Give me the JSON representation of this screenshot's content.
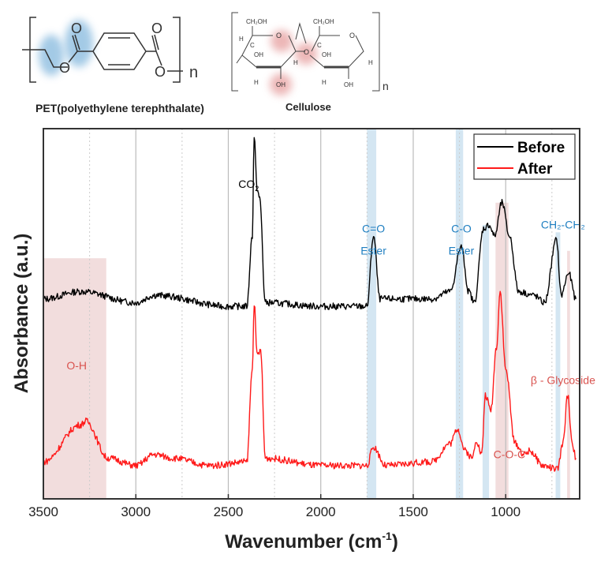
{
  "structures": {
    "pet": {
      "caption": "PET(polyethylene terephthalate)",
      "atom_o": "O",
      "repeat": "n"
    },
    "cellulose": {
      "caption": "Cellulose",
      "ch2oh": "CH₂OH",
      "oh": "OH",
      "h": "H",
      "c": "C",
      "o": "O",
      "repeat": "n"
    }
  },
  "colors": {
    "before": "#000000",
    "after": "#ff1a1a",
    "ester_band": "#cfe3f1",
    "cellulose_band": "#f1d9d9",
    "ester_label": "#1f7fc1",
    "cellulose_label": "#d9534f"
  },
  "chart_data": {
    "type": "line",
    "title": "",
    "xlabel": "Wavenumber (cm",
    "xlabel_sup": "-1",
    "xlabel_end": ")",
    "ylabel": "Absorbance (a.u.)",
    "xlim": [
      3500,
      600
    ],
    "ylim": [
      0,
      1
    ],
    "xticks": [
      3500,
      3000,
      2500,
      2000,
      1500,
      1000
    ],
    "grid": true,
    "legend": {
      "placement": "top-right",
      "entries": [
        "Before",
        "After"
      ]
    },
    "series": [
      {
        "name": "Before",
        "points": [
          [
            3500,
            0.54
          ],
          [
            3300,
            0.56
          ],
          [
            3000,
            0.53
          ],
          [
            2900,
            0.55
          ],
          [
            2500,
            0.52
          ],
          [
            2400,
            0.52
          ],
          [
            2370,
            0.71
          ],
          [
            2360,
            0.98
          ],
          [
            2345,
            0.84
          ],
          [
            2330,
            0.81
          ],
          [
            2300,
            0.53
          ],
          [
            2000,
            0.52
          ],
          [
            1750,
            0.52
          ],
          [
            1715,
            0.71
          ],
          [
            1680,
            0.54
          ],
          [
            1400,
            0.54
          ],
          [
            1300,
            0.56
          ],
          [
            1240,
            0.68
          ],
          [
            1200,
            0.56
          ],
          [
            1170,
            0.53
          ],
          [
            1120,
            0.73
          ],
          [
            1090,
            0.74
          ],
          [
            1060,
            0.71
          ],
          [
            1020,
            0.8
          ],
          [
            980,
            0.71
          ],
          [
            930,
            0.56
          ],
          [
            850,
            0.55
          ],
          [
            790,
            0.53
          ],
          [
            725,
            0.7
          ],
          [
            700,
            0.55
          ],
          [
            660,
            0.61
          ],
          [
            620,
            0.54
          ]
        ]
      },
      {
        "name": "After",
        "points": [
          [
            3500,
            0.1
          ],
          [
            3300,
            0.2
          ],
          [
            3270,
            0.21
          ],
          [
            3150,
            0.11
          ],
          [
            3000,
            0.09
          ],
          [
            2900,
            0.12
          ],
          [
            2800,
            0.11
          ],
          [
            2600,
            0.09
          ],
          [
            2400,
            0.1
          ],
          [
            2370,
            0.35
          ],
          [
            2360,
            0.53
          ],
          [
            2345,
            0.39
          ],
          [
            2325,
            0.4
          ],
          [
            2300,
            0.11
          ],
          [
            2000,
            0.09
          ],
          [
            1750,
            0.09
          ],
          [
            1715,
            0.14
          ],
          [
            1650,
            0.09
          ],
          [
            1400,
            0.1
          ],
          [
            1300,
            0.15
          ],
          [
            1260,
            0.19
          ],
          [
            1220,
            0.13
          ],
          [
            1180,
            0.11
          ],
          [
            1160,
            0.16
          ],
          [
            1130,
            0.12
          ],
          [
            1110,
            0.28
          ],
          [
            1080,
            0.24
          ],
          [
            1050,
            0.41
          ],
          [
            1030,
            0.56
          ],
          [
            1000,
            0.35
          ],
          [
            950,
            0.15
          ],
          [
            900,
            0.12
          ],
          [
            870,
            0.13
          ],
          [
            800,
            0.09
          ],
          [
            720,
            0.08
          ],
          [
            690,
            0.15
          ],
          [
            665,
            0.28
          ],
          [
            640,
            0.15
          ],
          [
            620,
            0.11
          ]
        ]
      }
    ],
    "bands": [
      {
        "name": "O-H region",
        "range": [
          3500,
          3160
        ],
        "top": 0.65,
        "kind": "cellulose"
      },
      {
        "name": "C=O ester",
        "range": [
          1750,
          1700
        ],
        "top": 1,
        "kind": "ester"
      },
      {
        "name": "C-O ester",
        "range": [
          1270,
          1230
        ],
        "top": 1,
        "kind": "ester"
      },
      {
        "name": "C-O ester 2",
        "range": [
          1125,
          1090
        ],
        "top": 0.74,
        "kind": "ester"
      },
      {
        "name": "C-O-C",
        "range": [
          1055,
          985
        ],
        "top": 0.8,
        "kind": "cellulose"
      },
      {
        "name": "CH2-CH2",
        "range": [
          730,
          705
        ],
        "top": 0.72,
        "kind": "ester"
      },
      {
        "name": "beta-glycoside",
        "range": [
          668,
          652
        ],
        "top": 0.67,
        "kind": "cellulose"
      }
    ],
    "annotations": [
      {
        "text": "CO",
        "sub": "2",
        "x": 2390,
        "y": 0.84,
        "kind": "plain"
      },
      {
        "text": "C=O",
        "x": 1715,
        "y": 0.72,
        "kind": "ester"
      },
      {
        "text": "Ester",
        "x": 1715,
        "y": 0.66,
        "kind": "ester"
      },
      {
        "text": "C-O",
        "x": 1240,
        "y": 0.72,
        "kind": "ester"
      },
      {
        "text": "Ester",
        "x": 1240,
        "y": 0.66,
        "kind": "ester"
      },
      {
        "text": "CH₂-CH₂",
        "x": 690,
        "y": 0.73,
        "kind": "ester"
      },
      {
        "text": "O-H",
        "x": 3320,
        "y": 0.35,
        "kind": "cellulose"
      },
      {
        "text": "β - Glycoside",
        "x": 690,
        "y": 0.31,
        "kind": "cellulose"
      },
      {
        "text": "C-O-C",
        "x": 980,
        "y": 0.11,
        "kind": "cellulose"
      }
    ]
  }
}
